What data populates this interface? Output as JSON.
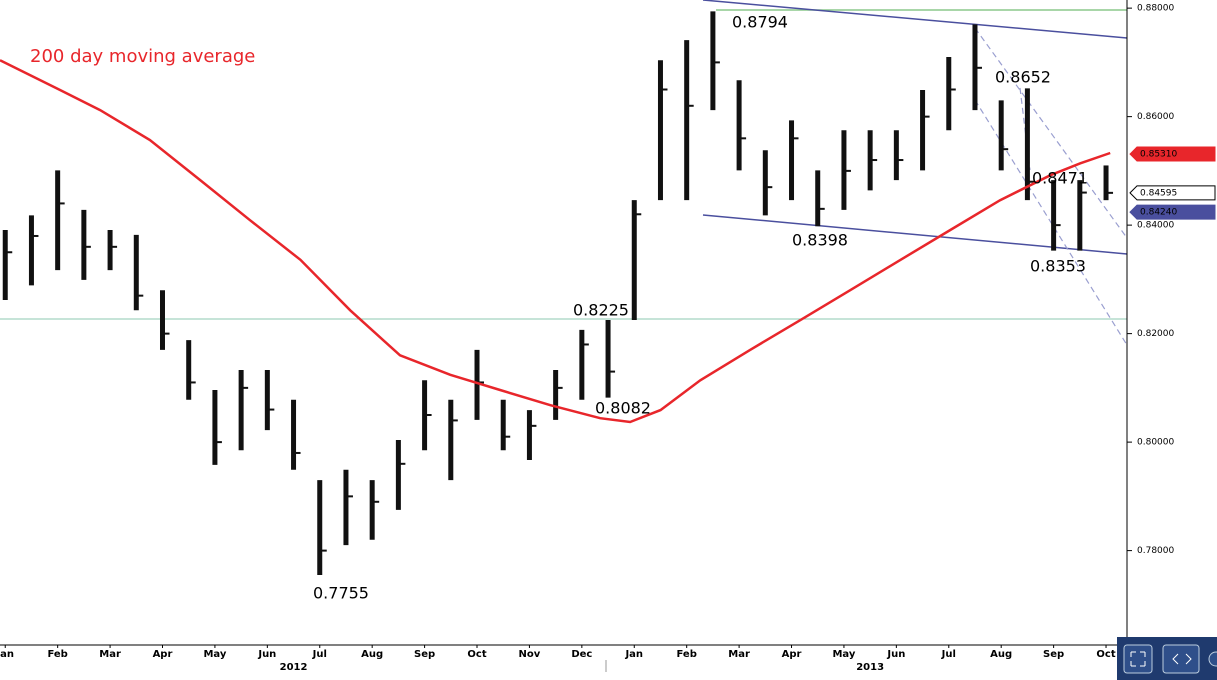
{
  "chart_data": {
    "type": "ohlc",
    "title": "200 day moving average",
    "xlim": [
      0.4,
      21.9
    ],
    "ylim": [
      0.7626,
      0.8815
    ],
    "xticks": [
      {
        "value": 0.5,
        "label": "Jan"
      },
      {
        "value": 1.5,
        "label": "Feb"
      },
      {
        "value": 2.5,
        "label": "Mar"
      },
      {
        "value": 3.5,
        "label": "Apr"
      },
      {
        "value": 4.5,
        "label": "May"
      },
      {
        "value": 5.5,
        "label": "Jun"
      },
      {
        "value": 6.5,
        "label": "Jul"
      },
      {
        "value": 7.5,
        "label": "Aug"
      },
      {
        "value": 8.5,
        "label": "Sep"
      },
      {
        "value": 9.5,
        "label": "Oct"
      },
      {
        "value": 10.5,
        "label": "Nov"
      },
      {
        "value": 11.5,
        "label": "Dec"
      },
      {
        "value": 12.5,
        "label": "Jan"
      },
      {
        "value": 13.5,
        "label": "Feb"
      },
      {
        "value": 14.5,
        "label": "Mar"
      },
      {
        "value": 15.5,
        "label": "Apr"
      },
      {
        "value": 16.5,
        "label": "May"
      },
      {
        "value": 17.5,
        "label": "Jun"
      },
      {
        "value": 18.5,
        "label": "Jul"
      },
      {
        "value": 19.5,
        "label": "Aug"
      },
      {
        "value": 20.5,
        "label": "Sep"
      },
      {
        "value": 21.5,
        "label": "Oct"
      }
    ],
    "year_ticks": [
      {
        "value": 6,
        "label": "2012"
      },
      {
        "value": 17,
        "label": "2013"
      }
    ],
    "yticks": [
      {
        "value": 0.78,
        "label": "0.78000"
      },
      {
        "value": 0.8,
        "label": "0.80000"
      },
      {
        "value": 0.82,
        "label": "0.82000"
      },
      {
        "value": 0.84,
        "label": "0.84000"
      },
      {
        "value": 0.86,
        "label": "0.86000"
      },
      {
        "value": 0.88,
        "label": "0.88000"
      }
    ],
    "price": {
      "color": "#111111",
      "x": [
        0.5,
        1,
        1.5,
        2,
        2.5,
        3,
        3.5,
        4,
        4.5,
        5,
        5.5,
        6,
        6.5,
        7,
        7.5,
        8,
        8.5,
        9,
        9.5,
        10,
        10.5,
        11,
        11.5,
        12,
        12.5,
        13,
        13.5,
        14,
        14.5,
        15,
        15.5,
        16,
        16.5,
        17,
        17.5,
        18,
        18.5,
        19,
        19.5,
        20,
        20.5,
        21,
        21.5
      ],
      "high": [
        0.8391,
        0.8418,
        0.8501,
        0.8428,
        0.8391,
        0.8382,
        0.828,
        0.8188,
        0.8096,
        0.8133,
        0.8133,
        0.8078,
        0.793,
        0.7949,
        0.793,
        0.8004,
        0.8114,
        0.8078,
        0.817,
        0.8078,
        0.8059,
        0.8133,
        0.8207,
        0.8225,
        0.8446,
        0.8704,
        0.8741,
        0.8794,
        0.8667,
        0.8538,
        0.8593,
        0.8501,
        0.8575,
        0.8575,
        0.8575,
        0.8649,
        0.871,
        0.877,
        0.863,
        0.8652,
        0.8483,
        0.8483,
        0.851
      ],
      "low": [
        0.8262,
        0.8289,
        0.8317,
        0.8299,
        0.8317,
        0.8243,
        0.817,
        0.8078,
        0.7958,
        0.7985,
        0.8022,
        0.7949,
        0.7755,
        0.781,
        0.782,
        0.7875,
        0.7985,
        0.793,
        0.8041,
        0.7985,
        0.7967,
        0.8041,
        0.8078,
        0.8082,
        0.8225,
        0.8446,
        0.8446,
        0.8612,
        0.8501,
        0.8418,
        0.8446,
        0.8398,
        0.8428,
        0.8464,
        0.8483,
        0.8501,
        0.8575,
        0.8612,
        0.8501,
        0.8446,
        0.8353,
        0.8353,
        0.8446
      ],
      "close": [
        0.835,
        0.838,
        0.844,
        0.836,
        0.836,
        0.827,
        0.82,
        0.811,
        0.8,
        0.81,
        0.806,
        0.798,
        0.78,
        0.79,
        0.789,
        0.796,
        0.805,
        0.804,
        0.811,
        0.801,
        0.803,
        0.81,
        0.818,
        0.813,
        0.842,
        0.865,
        0.862,
        0.87,
        0.856,
        0.847,
        0.856,
        0.843,
        0.85,
        0.852,
        0.852,
        0.86,
        0.865,
        0.869,
        0.854,
        0.848,
        0.84,
        0.846,
        0.84595
      ]
    },
    "moving_average": {
      "color": "#e8262b",
      "x": [
        0.4,
        1.55,
        2.31,
        3.26,
        4.22,
        5.17,
        6.13,
        7.08,
        8.03,
        8.99,
        9.94,
        10.9,
        11.85,
        12.42,
        13,
        13.76,
        14.71,
        15.67,
        16.62,
        17.58,
        18.53,
        19.48,
        20.44,
        21.01,
        21.58
      ],
      "values": [
        0.8704,
        0.8649,
        0.8612,
        0.8557,
        0.8483,
        0.8409,
        0.8336,
        0.8243,
        0.816,
        0.8124,
        0.8096,
        0.8068,
        0.8044,
        0.8037,
        0.8059,
        0.8114,
        0.817,
        0.8225,
        0.828,
        0.8336,
        0.8391,
        0.8446,
        0.8492,
        0.8514,
        0.8533
      ]
    },
    "price_tags": [
      {
        "value": 0.8531,
        "label": "0.85310",
        "color": "#e8262b"
      },
      {
        "value": 0.84595,
        "label": "0.84595",
        "color": "#ffffff"
      },
      {
        "value": 0.8424,
        "label": "0.84240",
        "color": "#4a4f9e"
      }
    ],
    "annotations": [
      "0.8794",
      "0.8652",
      "0.8471",
      "0.8398",
      "0.8353",
      "0.8225",
      "0.8082",
      "0.7755"
    ]
  }
}
